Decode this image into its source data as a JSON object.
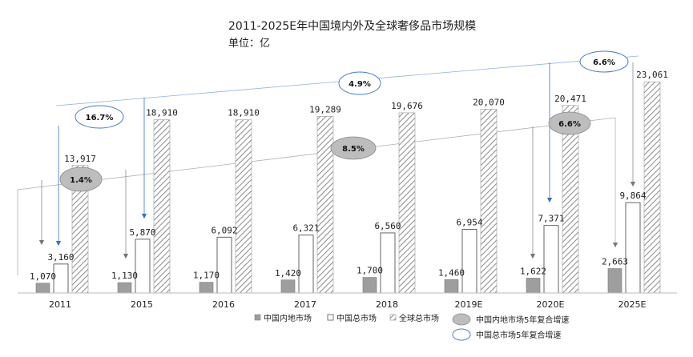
{
  "chart_data": {
    "type": "bar",
    "title": "2011-2025E年中国境内外及全球奢侈品市场规模",
    "subtitle": "单位：亿",
    "categories": [
      "2011",
      "2015",
      "2016",
      "2017",
      "2018",
      "2019E",
      "2020E",
      "2025E"
    ],
    "series": [
      {
        "name": "中国内地市场",
        "values": [
          1070,
          1130,
          1170,
          1420,
          1700,
          1460,
          1622,
          2663
        ],
        "labels": [
          "1,070",
          "1,130",
          "1,170",
          "1,420",
          "1,700",
          "1,460",
          "1,622",
          "2,663"
        ],
        "fill": "gray-solid"
      },
      {
        "name": "中国总市场",
        "values": [
          3160,
          5870,
          6092,
          6321,
          6560,
          6954,
          7371,
          9864
        ],
        "labels": [
          "3,160",
          "5,870",
          "6,092",
          "6,321",
          "6,560",
          "6,954",
          "7,371",
          "9,864"
        ],
        "fill": "white"
      },
      {
        "name": "全球总市场",
        "values": [
          13917,
          18910,
          18910,
          19289,
          19676,
          20070,
          20471,
          23061
        ],
        "labels": [
          "13,917",
          "18,910",
          "18,910",
          "19,289",
          "19,676",
          "20,070",
          "20,471",
          "23,061"
        ],
        "fill": "hatched"
      }
    ],
    "cagr_mainland": {
      "name": "中国内地市场5年复合增速",
      "values": [
        "1.4%",
        "8.5%",
        "6.6%"
      ],
      "color": "#bdbdbd"
    },
    "cagr_total": {
      "name": "中国总市场5年复合增速",
      "values": [
        "16.7%",
        "4.9%",
        "6.6%"
      ],
      "color": "#4a7cc7"
    },
    "ylim": [
      0,
      25000
    ],
    "grid": false,
    "legend_position": "bottom"
  }
}
